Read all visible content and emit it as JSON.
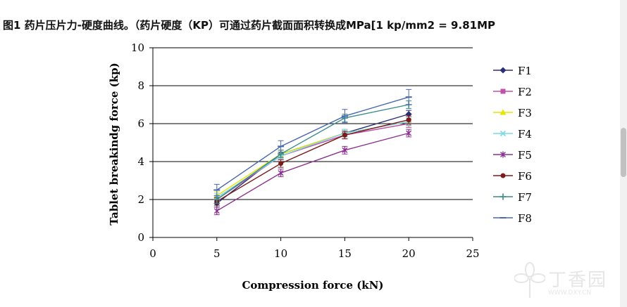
{
  "caption": "图1 药片压片力-硬度曲线。（药片硬度（KP）可通过药片截面面积转换成MPa[1 kp/mm2 = 9.81MP",
  "watermark": {
    "text": "丁香园",
    "url": "WWW.DXY.CN"
  },
  "chart_data": {
    "type": "line",
    "title": "",
    "xlabel": "Compression force (kN)",
    "ylabel": "Tablet breakindg force (kp)",
    "xlim": [
      0,
      25
    ],
    "ylim": [
      0,
      10
    ],
    "xticks": [
      "0",
      "5",
      "10",
      "15",
      "20",
      "25"
    ],
    "yticks": [
      "0",
      "2",
      "4",
      "6",
      "8",
      "10"
    ],
    "grid": "horizontal",
    "legend_position": "right",
    "x": [
      5,
      10,
      15,
      20
    ],
    "series": [
      {
        "name": "F1",
        "values": [
          1.8,
          4.4,
          5.5,
          6.5
        ],
        "color": "#2b2f74",
        "marker": "diamond",
        "error": [
          0.2,
          0.2,
          0.2,
          0.2
        ]
      },
      {
        "name": "F2",
        "values": [
          2.0,
          4.3,
          5.4,
          6.0
        ],
        "color": "#c050a8",
        "marker": "square",
        "error": [
          0.2,
          0.2,
          0.2,
          0.2
        ]
      },
      {
        "name": "F3",
        "values": [
          2.2,
          4.4,
          5.5,
          6.1
        ],
        "color": "#e6e600",
        "marker": "triangle",
        "error": [
          0.2,
          0.2,
          0.2,
          0.2
        ]
      },
      {
        "name": "F4",
        "values": [
          2.1,
          4.3,
          5.5,
          6.1
        ],
        "color": "#78d8e8",
        "marker": "x",
        "error": [
          0.2,
          0.2,
          0.2,
          0.2
        ]
      },
      {
        "name": "F5",
        "values": [
          1.4,
          3.4,
          4.6,
          5.5
        ],
        "color": "#8a3090",
        "marker": "star",
        "error": [
          0.2,
          0.2,
          0.2,
          0.2
        ]
      },
      {
        "name": "F6",
        "values": [
          1.9,
          3.9,
          5.4,
          6.2
        ],
        "color": "#7a1a1a",
        "marker": "circle",
        "error": [
          0.2,
          0.2,
          0.2,
          0.2
        ]
      },
      {
        "name": "F7",
        "values": [
          2.0,
          4.4,
          6.3,
          7.0
        ],
        "color": "#3a8a8a",
        "marker": "plus",
        "error": [
          0.2,
          0.2,
          0.2,
          0.2
        ]
      },
      {
        "name": "F8",
        "values": [
          2.5,
          4.8,
          6.4,
          7.4
        ],
        "color": "#4a68b0",
        "marker": "dash",
        "error": [
          0.3,
          0.3,
          0.35,
          0.4
        ]
      }
    ]
  }
}
